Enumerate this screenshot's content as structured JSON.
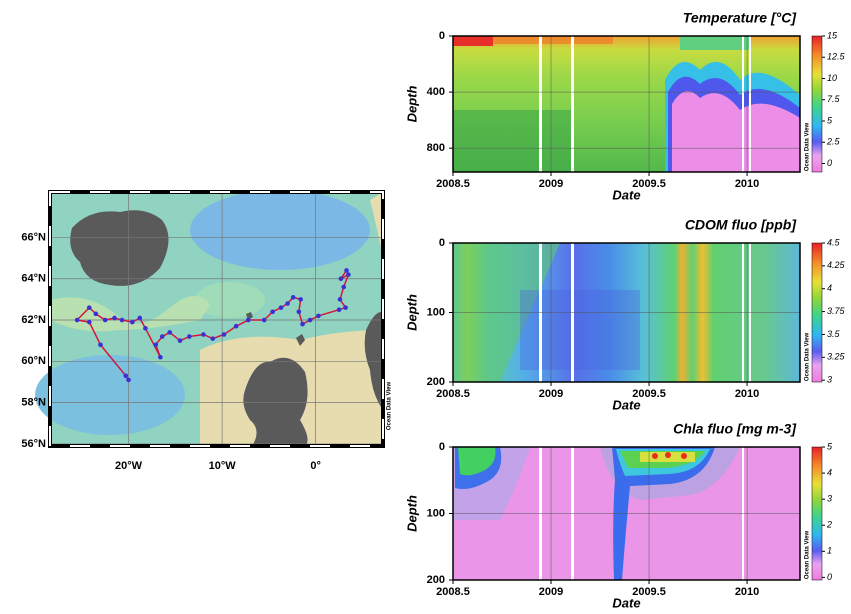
{
  "chart_data": [
    {
      "type": "map",
      "xlim": [
        -28.4,
        7.2
      ],
      "ylim": [
        55.9,
        68.2
      ],
      "xticks": [
        {
          "value": -20,
          "label": "20°W"
        },
        {
          "value": -10,
          "label": "10°W"
        },
        {
          "value": 0,
          "label": "0°"
        }
      ],
      "yticks": [
        {
          "value": 56,
          "label": "56°N"
        },
        {
          "value": 58,
          "label": "58°N"
        },
        {
          "value": 60,
          "label": "60°N"
        },
        {
          "value": 62,
          "label": "62°N"
        },
        {
          "value": 64,
          "label": "64°N"
        },
        {
          "value": 66,
          "label": "66°N"
        }
      ],
      "x": [
        3.3,
        2.7,
        3.5,
        3.0,
        2.6,
        3.2,
        2.5,
        0.3,
        -0.6,
        -1.4,
        -1.8,
        -1.6,
        -2.4,
        -3.0,
        -3.7,
        -4.6,
        -5.5,
        -7.2,
        -8.5,
        -9.8,
        -11.0,
        -12.0,
        -13.5,
        -14.5,
        -15.6,
        -16.4,
        -17.1,
        -16.6,
        -18.2,
        -18.8,
        -19.6,
        -20.7,
        -21.5,
        -22.5,
        -23.5,
        -24.2,
        -25.5,
        -24.2,
        -23.0,
        -20.3,
        -20.0
      ],
      "y": [
        64.4,
        64.0,
        64.2,
        63.6,
        63.0,
        62.6,
        62.5,
        62.2,
        62.0,
        61.8,
        62.4,
        63.0,
        63.1,
        62.8,
        62.6,
        62.4,
        62.0,
        62.0,
        61.7,
        61.3,
        61.1,
        61.3,
        61.2,
        61.0,
        61.4,
        61.2,
        60.8,
        60.2,
        61.6,
        62.1,
        61.9,
        62.0,
        62.1,
        62.0,
        62.3,
        62.6,
        62.0,
        61.9,
        60.8,
        59.3,
        59.1
      ],
      "color": "#d4143c",
      "marker_color": "#3b2fd6",
      "grid": true,
      "watermark": "Ocean Data View"
    },
    {
      "type": "section",
      "title": "Temperature [°C]",
      "xlabel": "Date",
      "ylabel": "Depth",
      "xlim": [
        2008.5,
        2010.27
      ],
      "ylim": [
        0,
        970
      ],
      "xticks": [
        2008.5,
        2009,
        2009.5,
        2010
      ],
      "yticks": [
        0,
        400,
        800
      ],
      "clim": [
        -1,
        15
      ],
      "cticks": [
        0,
        2.5,
        5,
        7.5,
        10,
        12.5,
        15
      ],
      "grid": true,
      "watermark": "Ocean Data View"
    },
    {
      "type": "section",
      "title": "CDOM fluo [ppb]",
      "xlabel": "Date",
      "ylabel": "Depth",
      "xlim": [
        2008.5,
        2010.27
      ],
      "ylim": [
        0,
        200
      ],
      "xticks": [
        2008.5,
        2009,
        2009.5,
        2010
      ],
      "yticks": [
        0,
        100,
        200
      ],
      "clim": [
        2.98,
        4.5
      ],
      "cticks": [
        3,
        3.25,
        3.5,
        3.75,
        4,
        4.25,
        4.5
      ],
      "grid": true,
      "watermark": "Ocean Data View"
    },
    {
      "type": "section",
      "title": "Chla fluo [mg m-3]",
      "xlabel": "Date",
      "ylabel": "Depth",
      "xlim": [
        2008.5,
        2010.27
      ],
      "ylim": [
        0,
        200
      ],
      "xticks": [
        2008.5,
        2009,
        2009.5,
        2010
      ],
      "yticks": [
        0,
        100,
        200
      ],
      "clim": [
        -0.1,
        5
      ],
      "cticks": [
        0,
        1,
        2,
        3,
        4,
        5
      ],
      "grid": true,
      "watermark": "Ocean Data View"
    }
  ]
}
